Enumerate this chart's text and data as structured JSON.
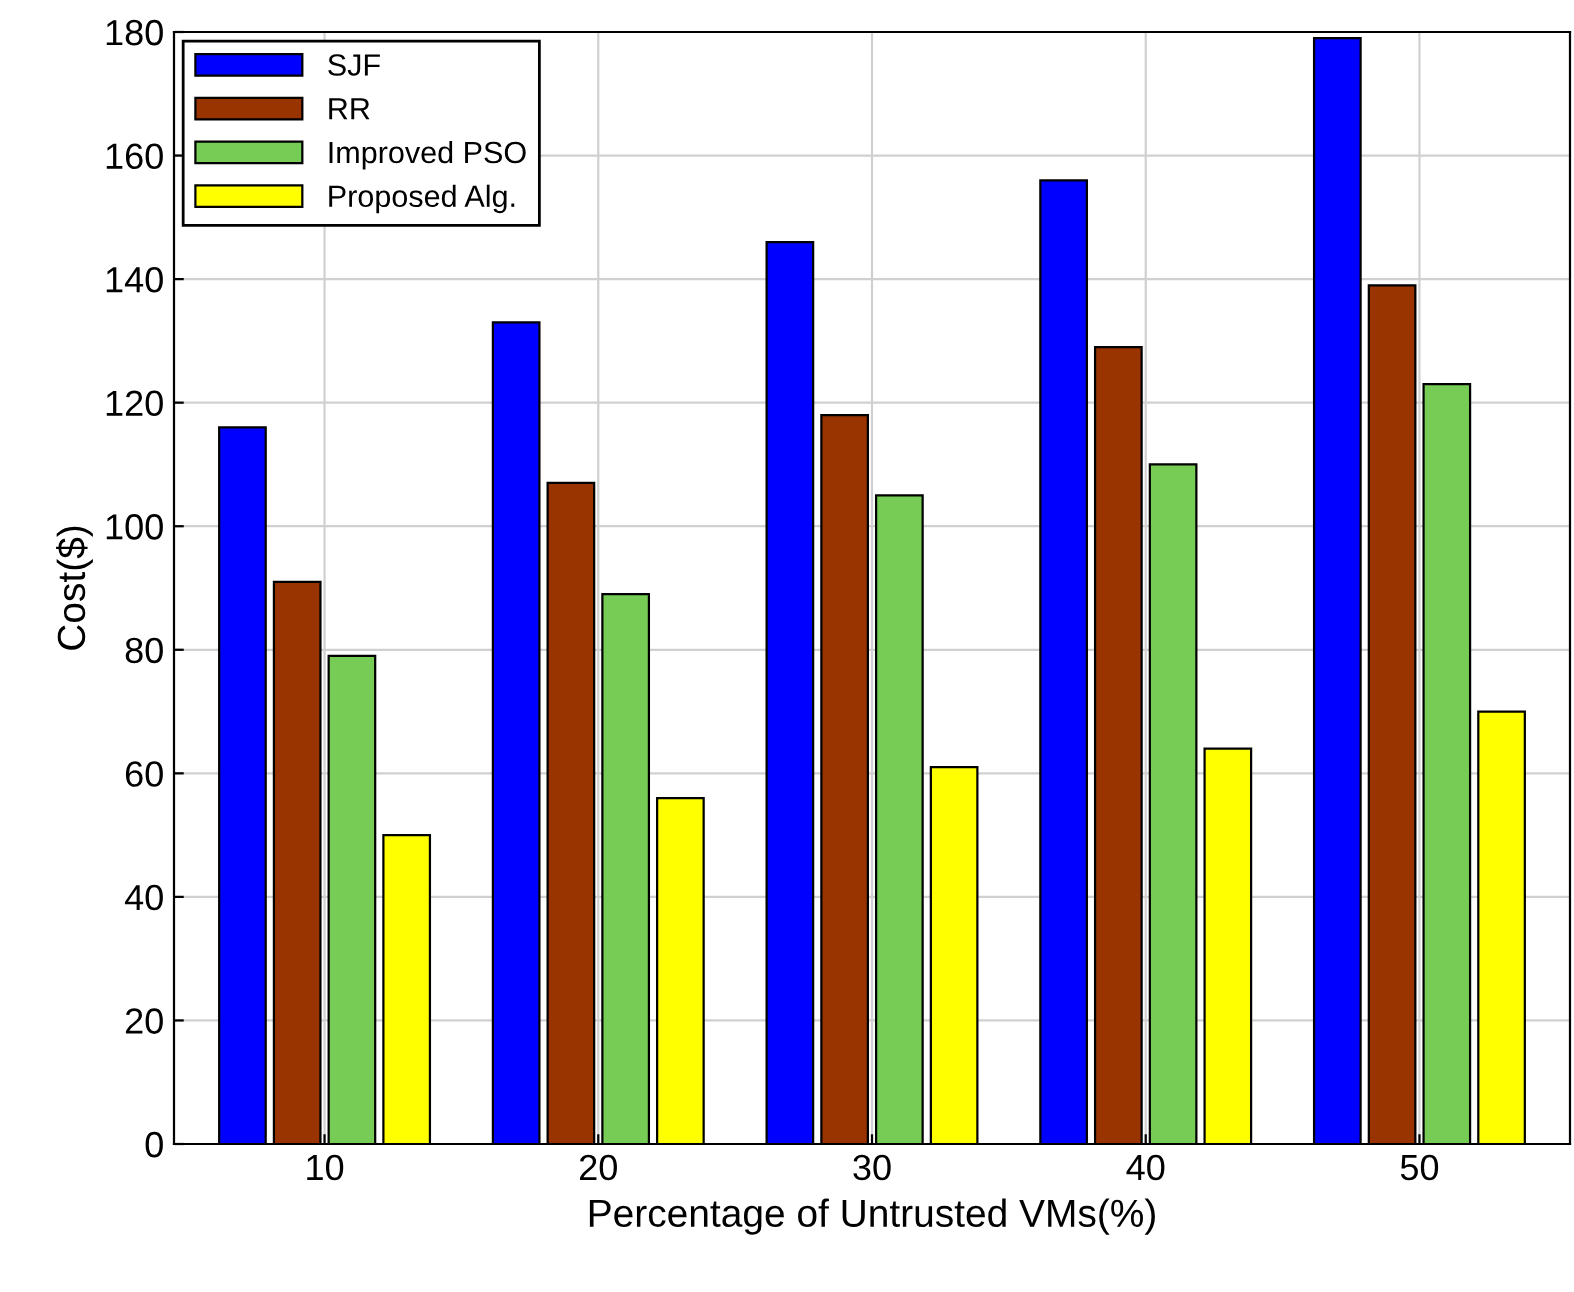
{
  "chart_data": {
    "type": "bar",
    "xlabel": "Percentage of Untrusted VMs(%)",
    "ylabel": "Cost($)",
    "categories": [
      "10",
      "20",
      "30",
      "40",
      "50"
    ],
    "series": [
      {
        "name": "SJF",
        "color": "#0000ff",
        "values": [
          116,
          133,
          146,
          156,
          179
        ]
      },
      {
        "name": "RR",
        "color": "#993300",
        "values": [
          91,
          107,
          118,
          129,
          139
        ]
      },
      {
        "name": "Improved PSO",
        "color": "#77cc55",
        "values": [
          79,
          89,
          105,
          110,
          123
        ]
      },
      {
        "name": "Proposed Alg.",
        "color": "#ffff00",
        "values": [
          50,
          56,
          61,
          64,
          70
        ]
      }
    ],
    "ylim": [
      0,
      180
    ],
    "yticks": [
      0,
      20,
      40,
      60,
      80,
      100,
      120,
      140,
      160,
      180
    ],
    "grid": true,
    "legend": "top left"
  }
}
